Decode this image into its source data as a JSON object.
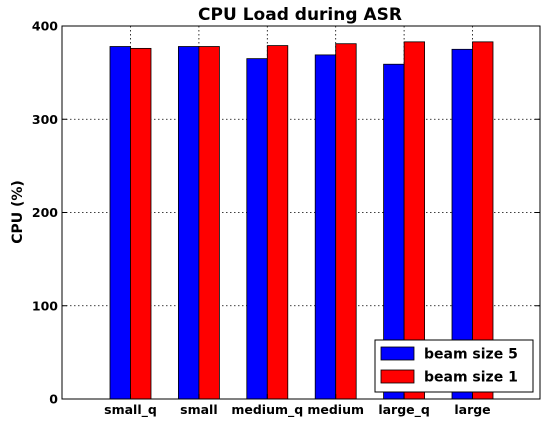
{
  "chart_data": {
    "type": "bar",
    "title": "CPU Load during ASR",
    "ylabel": "CPU (%)",
    "xlabel": "",
    "categories": [
      "small_q",
      "small",
      "medium_q",
      "medium",
      "large_q",
      "large"
    ],
    "series": [
      {
        "name": "beam size 5",
        "color": "#0000ff",
        "values": [
          378,
          378,
          365,
          369,
          359,
          375
        ]
      },
      {
        "name": "beam size 1",
        "color": "#ff0000",
        "values": [
          376,
          378,
          379,
          381,
          383,
          383
        ]
      }
    ],
    "ylim": [
      0,
      400
    ],
    "yticks": [
      0,
      100,
      200,
      300,
      400
    ],
    "grid": true,
    "legend_position": "lower-right"
  }
}
